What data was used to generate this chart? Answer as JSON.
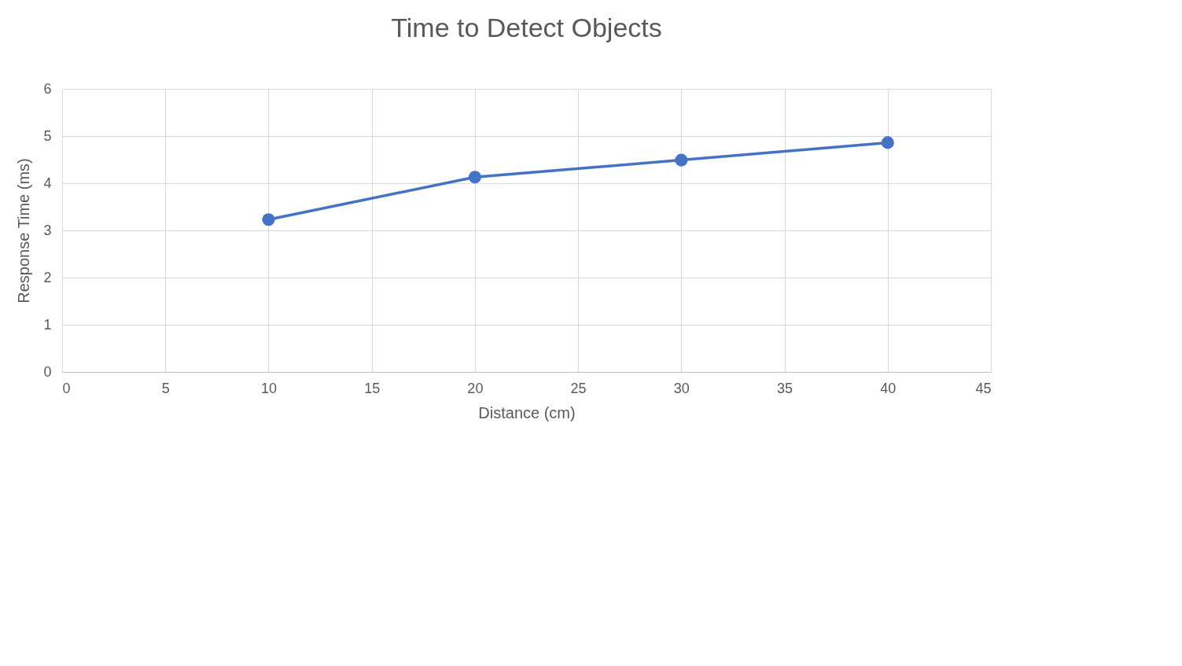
{
  "chart_data": {
    "type": "line",
    "title": "Time to Detect Objects",
    "xlabel": "Distance (cm)",
    "ylabel": "Response Time (ms)",
    "x": [
      10,
      20,
      30,
      40
    ],
    "series": [
      {
        "color": "#4472c4",
        "values": [
          3.23,
          4.13,
          4.49,
          4.86
        ]
      }
    ],
    "xlim": [
      0,
      45
    ],
    "xticks": [
      0,
      5,
      10,
      15,
      20,
      25,
      30,
      35,
      40,
      45
    ],
    "ylim": [
      0,
      6
    ],
    "yticks": [
      0,
      1,
      2,
      3,
      4,
      5,
      6
    ],
    "grid": true,
    "marker": "circle",
    "line_style": "solid"
  }
}
